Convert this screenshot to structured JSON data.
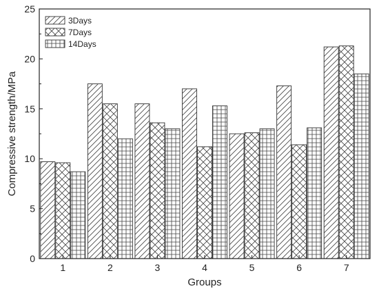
{
  "chart_data": {
    "type": "bar",
    "xlabel": "Groups",
    "ylabel": "Compressive strength/MPa",
    "ylim": [
      0,
      25
    ],
    "yticks": [
      0,
      5,
      10,
      15,
      20,
      25
    ],
    "categories": [
      "1",
      "2",
      "3",
      "4",
      "5",
      "6",
      "7"
    ],
    "legend_position": "top-left",
    "series": [
      {
        "name": "3Days",
        "pattern": "diagonal",
        "values": [
          9.7,
          17.5,
          15.5,
          17.0,
          12.5,
          17.3,
          21.2
        ]
      },
      {
        "name": "7Days",
        "pattern": "crosshatch",
        "values": [
          9.6,
          15.5,
          13.6,
          11.2,
          12.6,
          11.4,
          21.3
        ]
      },
      {
        "name": "14Days",
        "pattern": "grid",
        "values": [
          8.7,
          12.0,
          13.0,
          15.3,
          13.0,
          13.1,
          18.5
        ]
      }
    ]
  }
}
